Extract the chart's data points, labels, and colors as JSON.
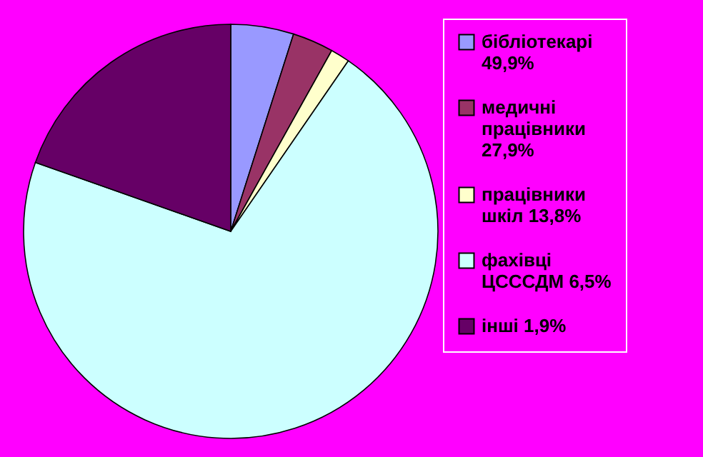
{
  "chart_data": {
    "type": "pie",
    "categories": [
      "бібліотекарі 49,9%",
      "медичні працівники 27,9%",
      "працівники шкіл 13,8%",
      "фахівці ЦСССДМ 6,5%",
      "інші 1,9%"
    ],
    "values": [
      4.9,
      3.2,
      1.5,
      70.8,
      19.6
    ],
    "colors": [
      "#9999ff",
      "#993366",
      "#ffffcc",
      "#ccffff",
      "#660066"
    ],
    "legend": "right"
  }
}
